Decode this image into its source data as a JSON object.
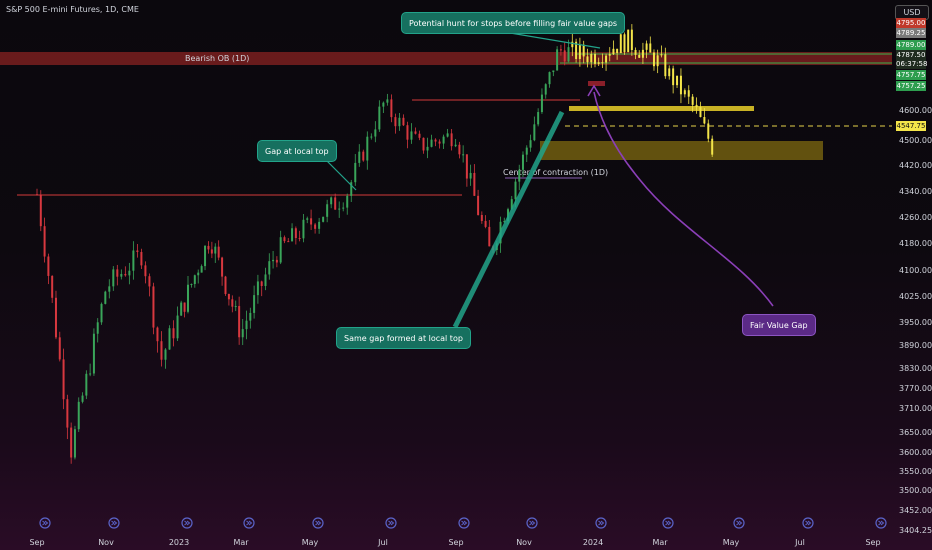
{
  "header": {
    "title": "S&P 500 E-mini Futures, 1D, CME",
    "currency_button": "USD"
  },
  "chart_data": {
    "type": "candlestick",
    "title": "S&P 500 E-mini Futures, 1D, CME",
    "xlabel": "",
    "ylabel": "",
    "x_tick_labels": [
      "Sep",
      "Nov",
      "2023",
      "Mar",
      "May",
      "Jul",
      "Sep",
      "Nov",
      "2024",
      "Mar",
      "May",
      "Jul",
      "Sep"
    ],
    "y_ticks": [
      4600,
      4500,
      4420,
      4340,
      4260,
      4180,
      4100,
      4025,
      3950,
      3890,
      3830,
      3770,
      3710,
      3650,
      3600,
      3550,
      3500,
      3452,
      3404.25
    ],
    "price_labels": [
      {
        "value": "4795.00",
        "color": "#c0392b"
      },
      {
        "value": "4789.25",
        "color": "#7a7a7a"
      },
      {
        "value": "4789.00",
        "color": "#2e9e4f"
      },
      {
        "value": "4787.50",
        "color": "#1f2b1f"
      },
      {
        "value": "06:37:58",
        "color": "#1f2b1f"
      },
      {
        "value": "4757.75",
        "color": "#2e9e4f"
      },
      {
        "value": "4757.25",
        "color": "#2e9e4f"
      }
    ],
    "last_price_label": "4547.75",
    "approx_path": [
      [
        "Sep 2022",
        4330
      ],
      [
        "Oct 2022",
        3600
      ],
      [
        "Nov 2022",
        4050
      ],
      [
        "Dec 2022",
        4150
      ],
      [
        "Dec 2022",
        3850
      ],
      [
        "Feb 2023",
        4200
      ],
      [
        "Mar 2023",
        3920
      ],
      [
        "Apr 2023",
        4150
      ],
      [
        "Jun 2023",
        4330
      ],
      [
        "Jul 2023",
        4620
      ],
      [
        "Aug 2023",
        4480
      ],
      [
        "Sep 2023",
        4520
      ],
      [
        "Oct 2023",
        4150
      ],
      [
        "Nov 2023",
        4450
      ],
      [
        "Dec 2023",
        4800
      ],
      [
        "Jan 2024",
        4780
      ],
      [
        "Feb 2024",
        4830
      ],
      [
        "Mar 2024",
        4760
      ],
      [
        "Apr 2024",
        4600
      ],
      [
        "Apr 2024",
        4470
      ]
    ],
    "zones": [
      {
        "label": "Bearish OB (1D)"
      },
      {
        "label": "Center of contraction (1D)"
      }
    ],
    "annotations": [
      "Potential hunt for stops before filling fair value gaps",
      "Gap at local top",
      "Same gap formed at local top",
      "Fair Value Gap"
    ],
    "grid": false,
    "legend": "none"
  }
}
